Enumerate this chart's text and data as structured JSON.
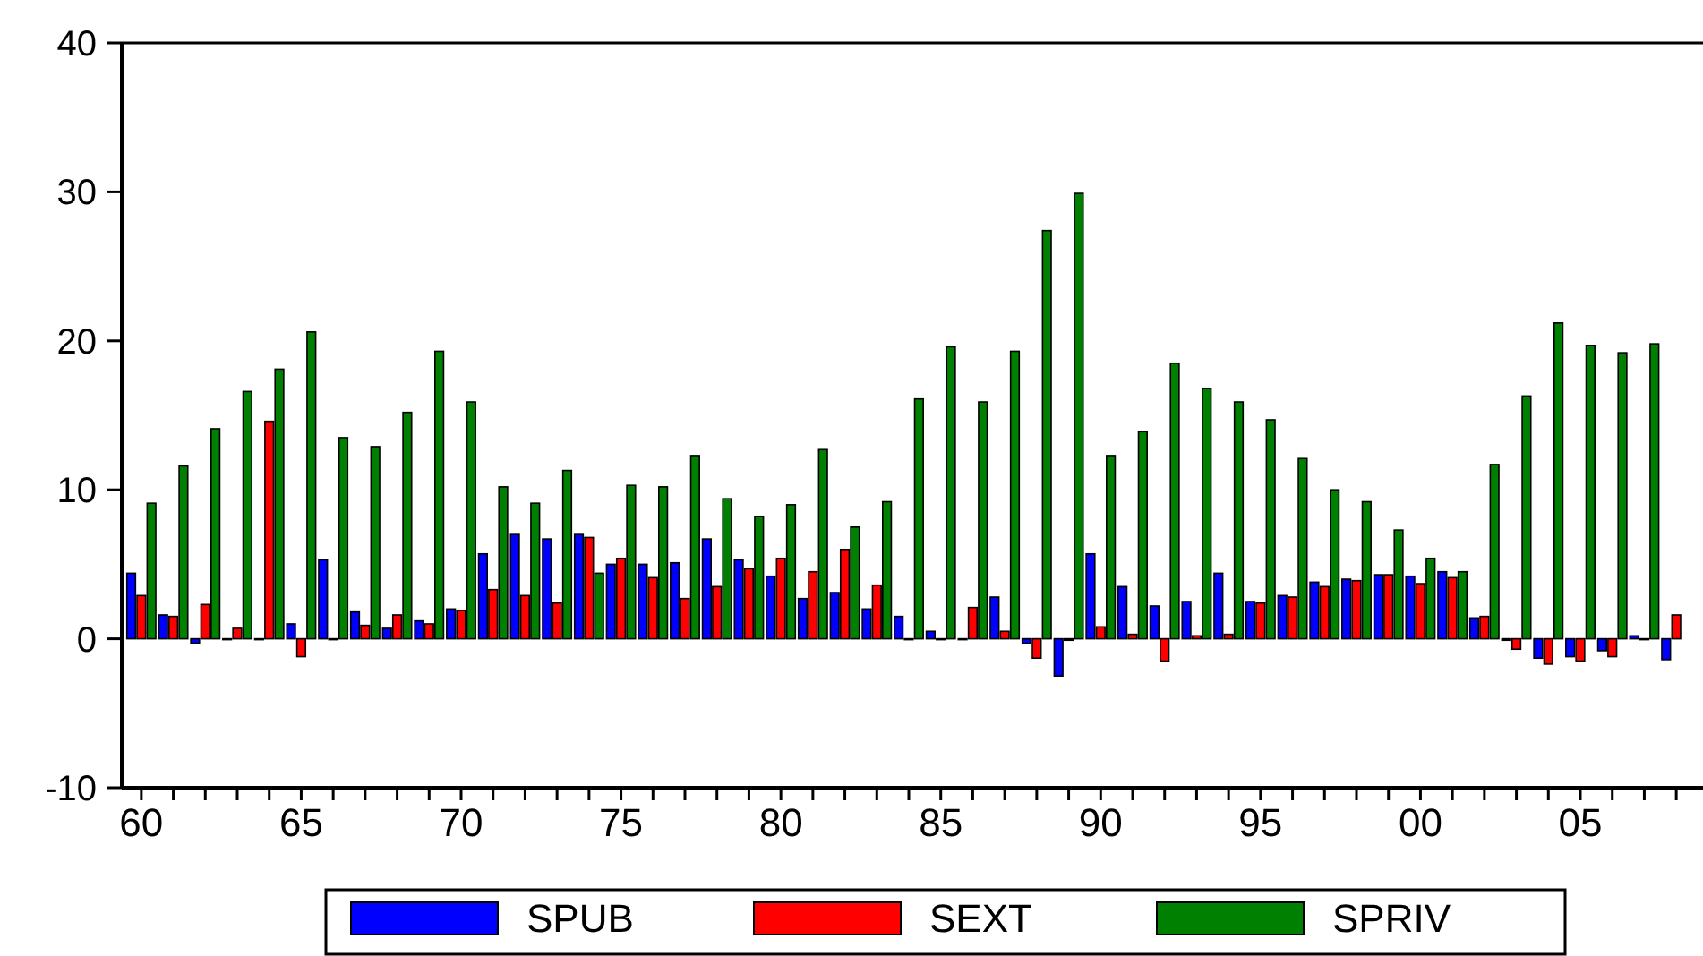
{
  "chart_data": {
    "type": "bar",
    "categories": [
      "60",
      null,
      null,
      null,
      null,
      "65",
      null,
      null,
      null,
      null,
      "70",
      null,
      null,
      null,
      null,
      "75",
      null,
      null,
      null,
      null,
      "80",
      null,
      null,
      null,
      null,
      "85",
      null,
      null,
      null,
      null,
      "90",
      null,
      null,
      null,
      null,
      "95",
      null,
      null,
      null,
      null,
      "00",
      null,
      null,
      null,
      null,
      "05",
      null,
      null,
      null
    ],
    "series": [
      {
        "name": "SPUB",
        "color": "#0000ff",
        "values": [
          4.4,
          1.6,
          -0.3,
          0,
          0,
          1.0,
          5.3,
          1.8,
          0.7,
          1.2,
          2.0,
          5.7,
          7.0,
          6.7,
          7.0,
          5.0,
          5.0,
          5.1,
          6.7,
          5.3,
          4.2,
          2.7,
          3.1,
          2.0,
          1.5,
          0.5,
          0,
          2.8,
          -0.3,
          -2.5,
          5.7,
          3.5,
          2.2,
          2.5,
          4.4,
          2.5,
          2.9,
          3.8,
          4.0,
          4.3,
          4.2,
          4.5,
          1.4,
          -0.1,
          -1.3,
          -1.2,
          -0.8,
          0.2,
          -1.4
        ]
      },
      {
        "name": "SEXT",
        "color": "#ff0000",
        "values": [
          2.9,
          1.5,
          2.3,
          0.7,
          14.6,
          -1.2,
          0,
          0.9,
          1.6,
          1.0,
          1.9,
          3.3,
          2.9,
          2.4,
          6.8,
          5.4,
          4.1,
          2.7,
          3.5,
          4.7,
          5.4,
          4.5,
          6.0,
          3.6,
          0,
          0,
          2.1,
          0.5,
          -1.3,
          -0.1,
          0.8,
          0.3,
          -1.5,
          0.2,
          0.3,
          2.4,
          2.8,
          3.5,
          3.9,
          4.3,
          3.7,
          4.1,
          1.5,
          -0.7,
          -1.7,
          -1.5,
          -1.2,
          0,
          1.6
        ]
      },
      {
        "name": "SPRIV",
        "color": "#008000",
        "values": [
          9.1,
          11.6,
          14.1,
          16.6,
          18.1,
          20.6,
          13.5,
          12.9,
          15.2,
          19.3,
          15.9,
          10.2,
          9.1,
          11.3,
          4.4,
          10.3,
          10.2,
          12.3,
          9.4,
          8.2,
          9.0,
          12.7,
          7.5,
          9.2,
          16.1,
          19.6,
          15.9,
          19.3,
          27.4,
          29.9,
          12.3,
          13.9,
          18.5,
          16.8,
          15.9,
          14.7,
          12.1,
          10.0,
          9.2,
          7.3,
          5.4,
          4.5,
          11.7,
          16.3,
          21.2,
          19.7,
          19.2,
          19.8,
          null
        ]
      }
    ],
    "ylim": [
      -10,
      40
    ],
    "yticks": [
      -10,
      0,
      10,
      20,
      30,
      40
    ],
    "grid": false,
    "legend": "bottom"
  }
}
